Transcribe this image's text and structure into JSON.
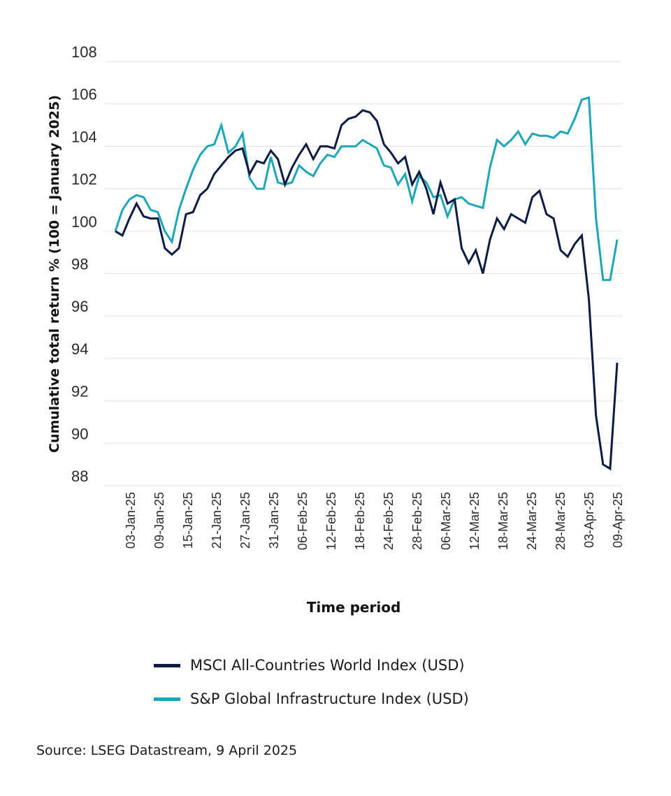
{
  "colors": {
    "msci": "#0b1b45",
    "sp": "#1ba7b8",
    "grid": "#e6e6e6"
  },
  "chart_data": {
    "type": "line",
    "title": "",
    "xlabel": "Time period",
    "ylabel": "Cumulative total return % (100 = January 2025)",
    "ylim": [
      88,
      108
    ],
    "yticks": [
      88,
      90,
      92,
      94,
      96,
      98,
      100,
      102,
      104,
      106,
      108
    ],
    "grid": true,
    "legend_position": "bottom",
    "x_tick_labels": [
      "03-Jan-25",
      "09-Jan-25",
      "15-Jan-25",
      "21-Jan-25",
      "27-Jan-25",
      "31-Jan-25",
      "06-Feb-25",
      "12-Feb-25",
      "18-Feb-25",
      "24-Feb-25",
      "28-Feb-25",
      "06-Mar-25",
      "12-Mar-25",
      "18-Mar-25",
      "24-Mar-25",
      "28-Mar-25",
      "03-Apr-25",
      "09-Apr-25"
    ],
    "series": [
      {
        "name": "MSCI All-Countries World Index (USD)",
        "values": [
          100,
          99.8,
          100.6,
          101.3,
          100.7,
          100.6,
          100.6,
          99.2,
          98.9,
          99.2,
          100.8,
          100.9,
          101.7,
          102.0,
          102.7,
          103.1,
          103.5,
          103.8,
          103.9,
          102.7,
          103.3,
          103.2,
          103.8,
          103.4,
          102.2,
          103.0,
          103.6,
          104.1,
          103.4,
          104.0,
          104.0,
          103.9,
          105.0,
          105.3,
          105.4,
          105.7,
          105.6,
          105.2,
          104.1,
          103.7,
          103.2,
          103.5,
          102.2,
          102.8,
          102.0,
          100.8,
          102.3,
          101.3,
          101.5,
          99.2,
          98.5,
          99.1,
          98.0,
          99.6,
          100.6,
          100.1,
          100.8,
          100.6,
          100.4,
          101.6,
          101.9,
          100.8,
          100.6,
          99.1,
          98.8,
          99.4,
          99.8,
          96.8,
          91.3,
          89.0,
          88.8,
          93.8
        ]
      },
      {
        "name": "S&P Global Infrastructure Index (USD)",
        "values": [
          100,
          101.0,
          101.5,
          101.7,
          101.6,
          101.0,
          100.9,
          100.0,
          99.5,
          101.0,
          102.0,
          102.9,
          103.6,
          104.0,
          104.1,
          105.0,
          103.7,
          104.0,
          104.6,
          102.5,
          102.0,
          102.0,
          103.5,
          102.3,
          102.2,
          102.3,
          103.1,
          102.8,
          102.6,
          103.2,
          103.6,
          103.5,
          104.0,
          104.0,
          104.0,
          104.3,
          104.1,
          103.9,
          103.1,
          103.0,
          102.2,
          102.7,
          101.4,
          102.6,
          102.3,
          101.6,
          101.7,
          100.7,
          101.5,
          101.6,
          101.3,
          101.2,
          101.1,
          103.0,
          104.3,
          104.0,
          104.3,
          104.7,
          104.1,
          104.6,
          104.5,
          104.5,
          104.4,
          104.7,
          104.6,
          105.3,
          106.2,
          106.3,
          100.6,
          97.7,
          97.7,
          99.6
        ]
      }
    ]
  },
  "legend": [
    {
      "label": "MSCI All-Countries World Index (USD)"
    },
    {
      "label": "S&P Global Infrastructure Index (USD)"
    }
  ],
  "source": "Source: LSEG Datastream, 9 April 2025"
}
